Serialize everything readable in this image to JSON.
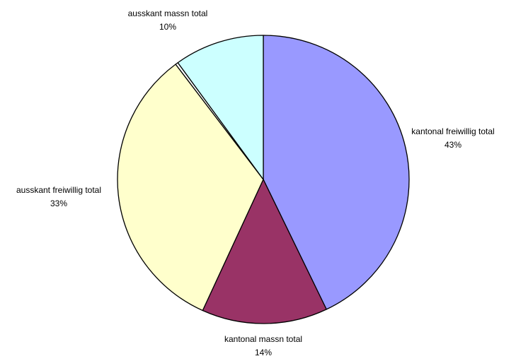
{
  "chart_data": {
    "type": "pie",
    "title": "",
    "start_angle_deg": 0,
    "direction": "clockwise",
    "slices": [
      {
        "label": "kantonal freiwillig total",
        "value": 43,
        "value_label": "43%",
        "color": "#9999FF"
      },
      {
        "label": "kantonal massn total",
        "value": 14,
        "value_label": "14%",
        "color": "#993366"
      },
      {
        "label": "ausskant freiwillig total",
        "value": 33,
        "value_label": "33%",
        "color": "#FFFFCC"
      },
      {
        "label": "",
        "value": 0.3,
        "value_label": "",
        "color": "#FFFFFF"
      },
      {
        "label": "ausskant massn total",
        "value": 10,
        "value_label": "10%",
        "color": "#CCFFFF"
      }
    ],
    "legend": "none",
    "slice_outline_color": "#000000"
  }
}
